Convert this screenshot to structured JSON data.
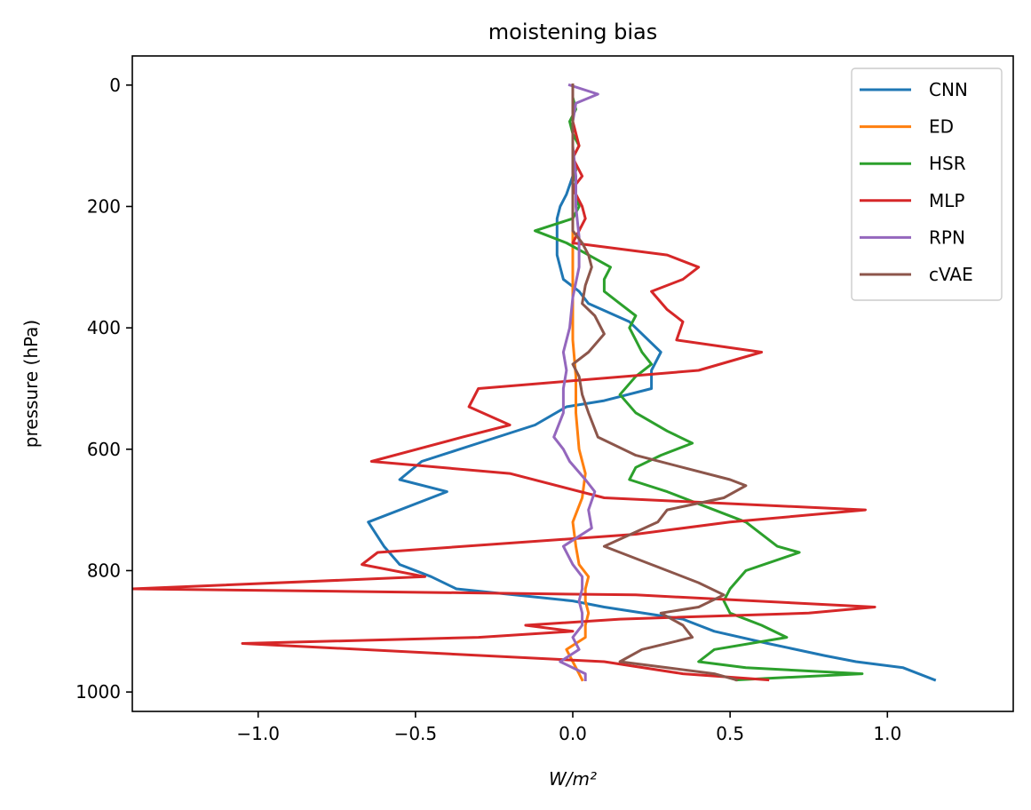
{
  "chart_data": {
    "type": "line",
    "title": "moistening bias",
    "xlabel": "W/m²",
    "ylabel": "pressure (hPa)",
    "xlim": [
      -1.4,
      1.4
    ],
    "ylim": [
      1000,
      0
    ],
    "y_inverted": true,
    "xticks": [
      -1.0,
      -0.5,
      0.0,
      0.5,
      1.0
    ],
    "xtick_labels": [
      "−1.0",
      "−0.5",
      "0.0",
      "0.5",
      "1.0"
    ],
    "yticks": [
      0,
      200,
      400,
      600,
      800,
      1000
    ],
    "ytick_labels": [
      "0",
      "200",
      "400",
      "600",
      "800",
      "1000"
    ],
    "grid": false,
    "legend_position": "top-right",
    "series": [
      {
        "name": "CNN",
        "color": "#1f77b4",
        "points": [
          [
            0.0,
            0
          ],
          [
            0.0,
            30
          ],
          [
            0.0,
            70
          ],
          [
            0.0,
            110
          ],
          [
            0.0,
            130
          ],
          [
            0.0,
            150
          ],
          [
            -0.02,
            180
          ],
          [
            -0.04,
            200
          ],
          [
            -0.05,
            220
          ],
          [
            -0.05,
            240
          ],
          [
            -0.05,
            260
          ],
          [
            -0.05,
            280
          ],
          [
            -0.04,
            300
          ],
          [
            -0.03,
            320
          ],
          [
            0.02,
            340
          ],
          [
            0.05,
            360
          ],
          [
            0.18,
            390
          ],
          [
            0.28,
            440
          ],
          [
            0.25,
            470
          ],
          [
            0.25,
            500
          ],
          [
            0.1,
            520
          ],
          [
            -0.02,
            530
          ],
          [
            -0.12,
            560
          ],
          [
            -0.3,
            590
          ],
          [
            -0.48,
            620
          ],
          [
            -0.55,
            650
          ],
          [
            -0.4,
            670
          ],
          [
            -0.65,
            720
          ],
          [
            -0.6,
            760
          ],
          [
            -0.55,
            790
          ],
          [
            -0.45,
            810
          ],
          [
            -0.37,
            830
          ],
          [
            0.0,
            850
          ],
          [
            0.1,
            860
          ],
          [
            0.35,
            880
          ],
          [
            0.45,
            900
          ],
          [
            0.62,
            920
          ],
          [
            0.8,
            940
          ],
          [
            0.9,
            950
          ],
          [
            1.05,
            960
          ],
          [
            1.15,
            980
          ]
        ]
      },
      {
        "name": "ED",
        "color": "#ff7f0e",
        "points": [
          [
            0.0,
            0
          ],
          [
            0.0,
            60
          ],
          [
            0.0,
            120
          ],
          [
            0.0,
            180
          ],
          [
            0.0,
            240
          ],
          [
            0.0,
            300
          ],
          [
            0.0,
            360
          ],
          [
            0.0,
            420
          ],
          [
            0.01,
            480
          ],
          [
            0.01,
            540
          ],
          [
            0.02,
            600
          ],
          [
            0.04,
            640
          ],
          [
            0.03,
            680
          ],
          [
            0.0,
            720
          ],
          [
            0.01,
            760
          ],
          [
            0.02,
            790
          ],
          [
            0.05,
            810
          ],
          [
            0.04,
            830
          ],
          [
            0.04,
            850
          ],
          [
            0.05,
            870
          ],
          [
            0.04,
            890
          ],
          [
            0.04,
            910
          ],
          [
            -0.02,
            930
          ],
          [
            0.0,
            950
          ],
          [
            0.02,
            970
          ],
          [
            0.03,
            980
          ]
        ]
      },
      {
        "name": "HSR",
        "color": "#2ca02c",
        "points": [
          [
            0.0,
            0
          ],
          [
            0.0,
            20
          ],
          [
            0.01,
            40
          ],
          [
            -0.01,
            60
          ],
          [
            0.0,
            80
          ],
          [
            0.02,
            100
          ],
          [
            0.0,
            120
          ],
          [
            0.01,
            140
          ],
          [
            0.0,
            160
          ],
          [
            0.01,
            180
          ],
          [
            0.02,
            200
          ],
          [
            0.0,
            220
          ],
          [
            -0.12,
            240
          ],
          [
            -0.02,
            260
          ],
          [
            0.05,
            280
          ],
          [
            0.12,
            300
          ],
          [
            0.1,
            320
          ],
          [
            0.1,
            340
          ],
          [
            0.15,
            360
          ],
          [
            0.2,
            380
          ],
          [
            0.18,
            400
          ],
          [
            0.2,
            420
          ],
          [
            0.22,
            440
          ],
          [
            0.25,
            460
          ],
          [
            0.2,
            480
          ],
          [
            0.15,
            510
          ],
          [
            0.2,
            540
          ],
          [
            0.3,
            570
          ],
          [
            0.38,
            590
          ],
          [
            0.28,
            610
          ],
          [
            0.2,
            630
          ],
          [
            0.18,
            650
          ],
          [
            0.3,
            670
          ],
          [
            0.4,
            690
          ],
          [
            0.55,
            720
          ],
          [
            0.65,
            760
          ],
          [
            0.72,
            770
          ],
          [
            0.55,
            800
          ],
          [
            0.5,
            830
          ],
          [
            0.48,
            850
          ],
          [
            0.5,
            870
          ],
          [
            0.6,
            890
          ],
          [
            0.68,
            910
          ],
          [
            0.45,
            930
          ],
          [
            0.4,
            950
          ],
          [
            0.55,
            960
          ],
          [
            0.92,
            970
          ],
          [
            0.52,
            980
          ]
        ]
      },
      {
        "name": "MLP",
        "color": "#d62728",
        "points": [
          [
            0.0,
            0
          ],
          [
            0.0,
            30
          ],
          [
            0.0,
            60
          ],
          [
            0.02,
            100
          ],
          [
            0.0,
            120
          ],
          [
            0.03,
            150
          ],
          [
            0.0,
            170
          ],
          [
            0.03,
            200
          ],
          [
            0.04,
            220
          ],
          [
            0.02,
            240
          ],
          [
            0.0,
            260
          ],
          [
            0.3,
            280
          ],
          [
            0.4,
            300
          ],
          [
            0.35,
            320
          ],
          [
            0.25,
            340
          ],
          [
            0.3,
            370
          ],
          [
            0.35,
            390
          ],
          [
            0.33,
            420
          ],
          [
            0.6,
            440
          ],
          [
            0.4,
            470
          ],
          [
            -0.3,
            500
          ],
          [
            -0.33,
            530
          ],
          [
            -0.2,
            560
          ],
          [
            -0.35,
            580
          ],
          [
            -0.64,
            620
          ],
          [
            -0.2,
            640
          ],
          [
            0.1,
            680
          ],
          [
            0.93,
            700
          ],
          [
            0.5,
            720
          ],
          [
            0.2,
            740
          ],
          [
            -0.62,
            770
          ],
          [
            -0.67,
            790
          ],
          [
            -0.47,
            810
          ],
          [
            -1.4,
            830
          ],
          [
            0.2,
            840
          ],
          [
            0.96,
            860
          ],
          [
            0.75,
            870
          ],
          [
            0.15,
            880
          ],
          [
            -0.15,
            890
          ],
          [
            0.0,
            900
          ],
          [
            -0.3,
            910
          ],
          [
            -1.05,
            920
          ],
          [
            0.1,
            950
          ],
          [
            0.35,
            970
          ],
          [
            0.62,
            980
          ]
        ]
      },
      {
        "name": "RPN",
        "color": "#9467bd",
        "points": [
          [
            -0.01,
            0
          ],
          [
            0.08,
            15
          ],
          [
            0.01,
            30
          ],
          [
            0.0,
            60
          ],
          [
            0.0,
            100
          ],
          [
            0.01,
            150
          ],
          [
            0.01,
            200
          ],
          [
            0.02,
            250
          ],
          [
            0.02,
            300
          ],
          [
            0.0,
            350
          ],
          [
            -0.01,
            400
          ],
          [
            -0.03,
            440
          ],
          [
            -0.02,
            470
          ],
          [
            -0.03,
            500
          ],
          [
            -0.03,
            540
          ],
          [
            -0.06,
            580
          ],
          [
            -0.03,
            600
          ],
          [
            -0.01,
            620
          ],
          [
            0.04,
            650
          ],
          [
            0.07,
            670
          ],
          [
            0.05,
            700
          ],
          [
            0.06,
            730
          ],
          [
            -0.03,
            760
          ],
          [
            0.0,
            790
          ],
          [
            0.03,
            810
          ],
          [
            0.03,
            830
          ],
          [
            0.02,
            850
          ],
          [
            0.03,
            870
          ],
          [
            0.03,
            890
          ],
          [
            0.0,
            910
          ],
          [
            0.02,
            930
          ],
          [
            -0.04,
            950
          ],
          [
            0.04,
            970
          ],
          [
            0.04,
            980
          ]
        ]
      },
      {
        "name": "cVAE",
        "color": "#8c564b",
        "points": [
          [
            0.0,
            0
          ],
          [
            0.0,
            40
          ],
          [
            0.0,
            80
          ],
          [
            0.0,
            120
          ],
          [
            0.0,
            160
          ],
          [
            0.0,
            200
          ],
          [
            0.0,
            240
          ],
          [
            0.03,
            260
          ],
          [
            0.05,
            280
          ],
          [
            0.06,
            300
          ],
          [
            0.04,
            330
          ],
          [
            0.03,
            360
          ],
          [
            0.07,
            380
          ],
          [
            0.1,
            410
          ],
          [
            0.05,
            440
          ],
          [
            0.0,
            460
          ],
          [
            0.02,
            480
          ],
          [
            0.03,
            510
          ],
          [
            0.05,
            540
          ],
          [
            0.08,
            580
          ],
          [
            0.2,
            610
          ],
          [
            0.35,
            630
          ],
          [
            0.5,
            650
          ],
          [
            0.55,
            660
          ],
          [
            0.48,
            680
          ],
          [
            0.3,
            700
          ],
          [
            0.27,
            720
          ],
          [
            0.1,
            760
          ],
          [
            0.25,
            790
          ],
          [
            0.4,
            820
          ],
          [
            0.48,
            840
          ],
          [
            0.4,
            860
          ],
          [
            0.28,
            870
          ],
          [
            0.35,
            890
          ],
          [
            0.38,
            910
          ],
          [
            0.22,
            930
          ],
          [
            0.15,
            950
          ],
          [
            0.3,
            960
          ],
          [
            0.45,
            970
          ],
          [
            0.52,
            980
          ]
        ]
      }
    ]
  }
}
